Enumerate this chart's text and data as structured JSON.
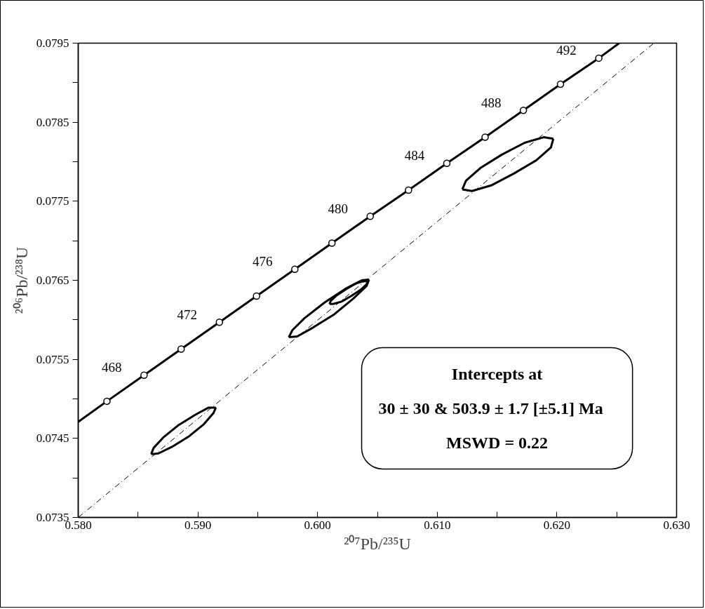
{
  "chart_data": {
    "type": "line",
    "xlabel": "²⁰⁷Pb/²³⁵U",
    "ylabel": "²⁰⁶Pb/²³⁸U",
    "xlim": [
      0.58,
      0.63
    ],
    "ylim": [
      0.0735,
      0.0795
    ],
    "xticks": [
      {
        "value": 0.58,
        "label": "0.580"
      },
      {
        "value": 0.585,
        "label": null
      },
      {
        "value": 0.59,
        "label": "0.590"
      },
      {
        "value": 0.595,
        "label": null
      },
      {
        "value": 0.6,
        "label": "0.600"
      },
      {
        "value": 0.605,
        "label": null
      },
      {
        "value": 0.61,
        "label": "0.610"
      },
      {
        "value": 0.615,
        "label": null
      },
      {
        "value": 0.62,
        "label": "0.620"
      },
      {
        "value": 0.625,
        "label": null
      },
      {
        "value": 0.63,
        "label": "0.630"
      }
    ],
    "yticks": [
      {
        "value": 0.0735,
        "label": "0.0735"
      },
      {
        "value": 0.074,
        "label": null
      },
      {
        "value": 0.0745,
        "label": "0.0745"
      },
      {
        "value": 0.075,
        "label": null
      },
      {
        "value": 0.0755,
        "label": "0.0755"
      },
      {
        "value": 0.076,
        "label": null
      },
      {
        "value": 0.0765,
        "label": "0.0765"
      },
      {
        "value": 0.077,
        "label": null
      },
      {
        "value": 0.0775,
        "label": "0.0775"
      },
      {
        "value": 0.078,
        "label": null
      },
      {
        "value": 0.0785,
        "label": "0.0785"
      },
      {
        "value": 0.079,
        "label": null
      },
      {
        "value": 0.0795,
        "label": "0.0795"
      }
    ],
    "series": [
      {
        "color": "#000000",
        "line_style": "solid",
        "x": [
          0.58,
          0.5824,
          0.5855,
          0.5886,
          0.5918,
          0.5949,
          0.5981,
          0.6012,
          0.6044,
          0.6076,
          0.6108,
          0.614,
          0.6172,
          0.6203,
          0.6235,
          0.6252
        ],
        "values": [
          0.07471,
          0.07497,
          0.0753,
          0.07563,
          0.07597,
          0.0763,
          0.07664,
          0.07697,
          0.07731,
          0.07764,
          0.07798,
          0.07831,
          0.07865,
          0.07898,
          0.07931,
          0.0795
        ]
      },
      {
        "type": "scatter",
        "color": "#000000",
        "marker": "circle",
        "x": [
          0.5824,
          0.5855,
          0.5886,
          0.5918,
          0.5949,
          0.5981,
          0.6012,
          0.6044,
          0.6076,
          0.6108,
          0.614,
          0.6172,
          0.6203,
          0.6235
        ],
        "values": [
          0.07497,
          0.0753,
          0.07563,
          0.07597,
          0.0763,
          0.07664,
          0.07697,
          0.07731,
          0.07764,
          0.07798,
          0.07831,
          0.07865,
          0.07898,
          0.07931
        ]
      },
      {
        "color": "#000000",
        "line_style": "dashed",
        "x": [
          0.58,
          0.6281
        ],
        "values": [
          0.0735,
          0.0795
        ]
      },
      {
        "color": "#000000",
        "line_style": "solid",
        "x": [
          0.5861,
          0.5863,
          0.5871,
          0.5884,
          0.5898,
          0.5909,
          0.5915
        ],
        "values": [
          0.0743,
          0.07438,
          0.07451,
          0.07467,
          0.0748,
          0.07489,
          0.07489
        ]
      },
      {
        "color": "#000000",
        "line_style": "solid",
        "x": [
          0.5861,
          0.5867,
          0.5878,
          0.5892,
          0.5905,
          0.5913,
          0.5915
        ],
        "values": [
          0.0743,
          0.07431,
          0.07439,
          0.07452,
          0.07468,
          0.07482,
          0.07489
        ]
      },
      {
        "color": "#000000",
        "line_style": "solid",
        "x": [
          0.5976,
          0.5979,
          0.5989,
          0.6006,
          0.6023,
          0.6037,
          0.6043
        ],
        "values": [
          0.07578,
          0.07587,
          0.07602,
          0.07622,
          0.07639,
          0.0765,
          0.07651
        ]
      },
      {
        "color": "#000000",
        "line_style": "solid",
        "x": [
          0.5976,
          0.5983,
          0.5996,
          0.6014,
          0.603,
          0.6041,
          0.6043
        ],
        "values": [
          0.07578,
          0.07579,
          0.0759,
          0.07607,
          0.07627,
          0.07643,
          0.07651
        ]
      },
      {
        "color": "#000000",
        "line_style": "solid",
        "x": [
          0.601,
          0.6011,
          0.6016,
          0.6024,
          0.6032,
          0.6039,
          0.6042
        ],
        "values": [
          0.0762,
          0.07624,
          0.07631,
          0.07639,
          0.07646,
          0.07649,
          0.07649
        ]
      },
      {
        "color": "#000000",
        "line_style": "solid",
        "x": [
          0.601,
          0.6013,
          0.602,
          0.6028,
          0.6036,
          0.6041,
          0.6042
        ],
        "values": [
          0.0762,
          0.0762,
          0.07623,
          0.0763,
          0.07638,
          0.07645,
          0.07649
        ]
      },
      {
        "color": "#000000",
        "line_style": "solid",
        "x": [
          0.6121,
          0.6124,
          0.6136,
          0.6154,
          0.6173,
          0.6189,
          0.6197
        ],
        "values": [
          0.07765,
          0.07776,
          0.07792,
          0.07809,
          0.07824,
          0.07831,
          0.07829
        ]
      },
      {
        "color": "#000000",
        "line_style": "solid",
        "x": [
          0.6121,
          0.6129,
          0.6145,
          0.6164,
          0.6183,
          0.6195,
          0.6197
        ],
        "values": [
          0.07765,
          0.07763,
          0.0777,
          0.07785,
          0.07802,
          0.07818,
          0.07829
        ]
      }
    ],
    "annotations": [
      {
        "text": "468",
        "x": 0.5855,
        "y": 0.0753
      },
      {
        "text": "472",
        "x": 0.5918,
        "y": 0.07597
      },
      {
        "text": "476",
        "x": 0.5981,
        "y": 0.07664
      },
      {
        "text": "480",
        "x": 0.6044,
        "y": 0.07731
      },
      {
        "text": "484",
        "x": 0.6108,
        "y": 0.07798
      },
      {
        "text": "488",
        "x": 0.6172,
        "y": 0.07865
      },
      {
        "text": "492",
        "x": 0.6235,
        "y": 0.07931
      },
      "Intercepts at",
      "30 ± 30 & 503.9 ± 1.7   [±5.1]  Ma",
      "MSWD = 0.22"
    ]
  }
}
